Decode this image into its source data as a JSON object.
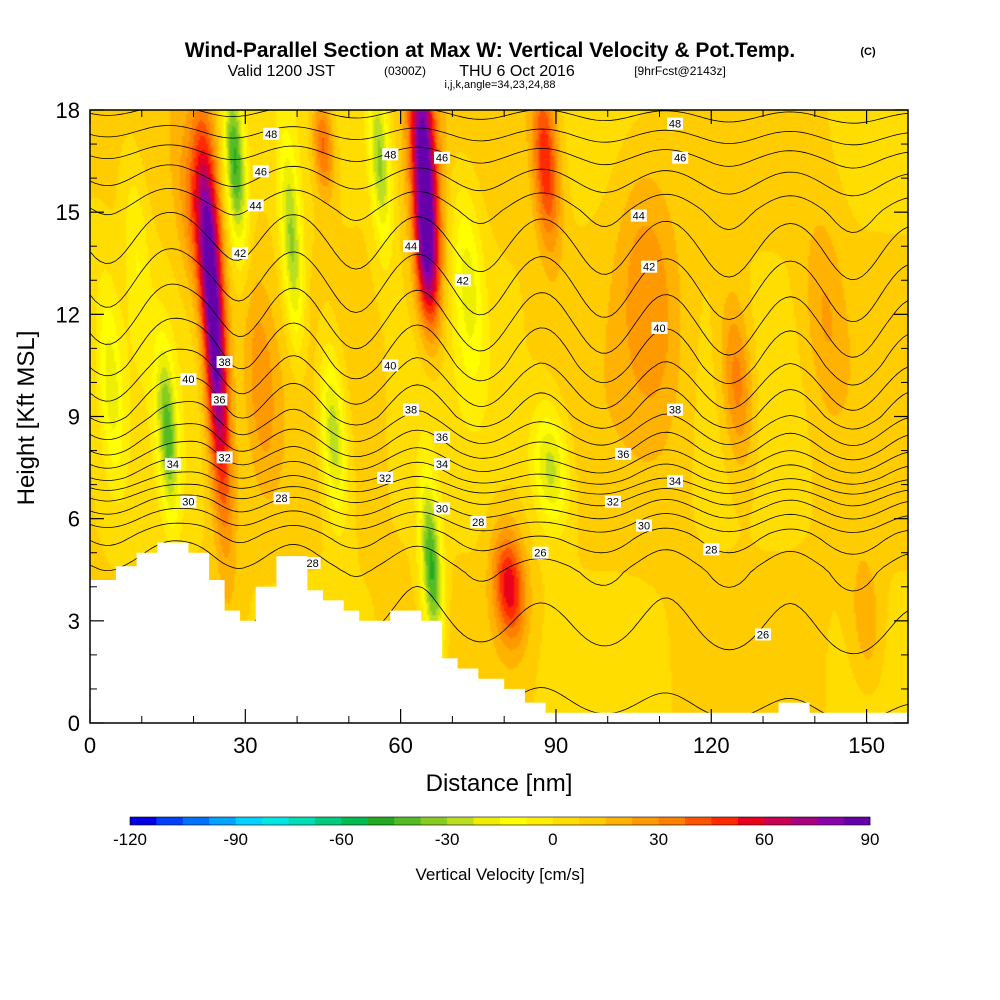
{
  "header": {
    "title": "Wind-Parallel Section at Max W: Vertical Velocity & Pot.Temp.",
    "copyright": "(C)",
    "valid_prefix": "Valid 1200 JST",
    "valid_utc": "(0300Z)",
    "valid_date": "THU 6 Oct 2016",
    "forecast": "[9hrFcst@2143z]",
    "indices": "i,j,k,angle=34,23,24,88"
  },
  "chart_data": {
    "type": "heatmap",
    "xlabel": "Distance [nm]",
    "ylabel": "Height [Kft MSL]",
    "xlim": [
      0,
      158
    ],
    "ylim": [
      0,
      18
    ],
    "x_ticks": [
      "0",
      "30",
      "60",
      "90",
      "120",
      "150"
    ],
    "x_tick_values": [
      0,
      30,
      60,
      90,
      120,
      150
    ],
    "y_ticks": [
      "0",
      "3",
      "6",
      "9",
      "12",
      "15",
      "18"
    ],
    "y_tick_values": [
      0,
      3,
      6,
      9,
      12,
      15,
      18
    ],
    "colorbar": {
      "label": "Vertical Velocity [cm/s]",
      "min": -120,
      "max": 90,
      "step": 7.5,
      "ticks": [
        "-120",
        "-90",
        "-60",
        "-30",
        "0",
        "30",
        "60",
        "90"
      ],
      "tick_values": [
        -120,
        -90,
        -60,
        -30,
        0,
        30,
        60,
        90
      ],
      "colors": [
        "#0000e6",
        "#0040ff",
        "#0072ff",
        "#00a4ff",
        "#00d2ff",
        "#00e6e6",
        "#00ddb4",
        "#00cc80",
        "#00bb50",
        "#22aa22",
        "#55bb22",
        "#88cc22",
        "#bbdd22",
        "#eeee00",
        "#ffff00",
        "#ffee00",
        "#ffdd00",
        "#ffcc00",
        "#ffb300",
        "#ff9900",
        "#ff7f00",
        "#ff5500",
        "#ff2a00",
        "#e8001e",
        "#c80050",
        "#a8007e",
        "#8a00aa",
        "#6600aa"
      ]
    },
    "terrain_profile": [
      [
        0,
        4.2
      ],
      [
        5,
        4.2
      ],
      [
        5,
        4.6
      ],
      [
        9,
        4.6
      ],
      [
        9,
        5.0
      ],
      [
        13,
        5.0
      ],
      [
        13,
        5.3
      ],
      [
        19,
        5.3
      ],
      [
        19,
        5.0
      ],
      [
        23,
        5.0
      ],
      [
        23,
        4.2
      ],
      [
        26,
        4.2
      ],
      [
        26,
        3.3
      ],
      [
        29,
        3.3
      ],
      [
        29,
        3.0
      ],
      [
        32,
        3.0
      ],
      [
        32,
        4.0
      ],
      [
        36,
        4.0
      ],
      [
        36,
        4.9
      ],
      [
        42,
        4.9
      ],
      [
        42,
        3.9
      ],
      [
        45,
        3.9
      ],
      [
        45,
        3.6
      ],
      [
        49,
        3.6
      ],
      [
        49,
        3.3
      ],
      [
        52,
        3.3
      ],
      [
        52,
        3.0
      ],
      [
        58,
        3.0
      ],
      [
        58,
        3.3
      ],
      [
        64,
        3.3
      ],
      [
        64,
        3.0
      ],
      [
        68,
        3.0
      ],
      [
        68,
        1.9
      ],
      [
        71,
        1.9
      ],
      [
        71,
        1.6
      ],
      [
        75,
        1.6
      ],
      [
        75,
        1.3
      ],
      [
        80,
        1.3
      ],
      [
        80,
        1.0
      ],
      [
        84,
        1.0
      ],
      [
        84,
        0.6
      ],
      [
        88,
        0.6
      ],
      [
        88,
        0.3
      ],
      [
        110,
        0.3
      ],
      [
        110,
        0.3
      ],
      [
        133,
        0.3
      ],
      [
        133,
        0.6
      ],
      [
        139,
        0.6
      ],
      [
        139,
        0.3
      ],
      [
        158,
        0.3
      ]
    ],
    "w_cells": [
      {
        "x": 24,
        "z": 11.5,
        "sx": 2.2,
        "sz": 5.0,
        "w": 85
      },
      {
        "x": 21,
        "z": 15.0,
        "sx": 3.5,
        "sz": 2.5,
        "w": 30
      },
      {
        "x": 64.5,
        "z": 16.5,
        "sx": 2.5,
        "sz": 3.5,
        "w": 80
      },
      {
        "x": 65,
        "z": 13.5,
        "sx": 2.2,
        "sz": 2.0,
        "w": 45
      },
      {
        "x": 88,
        "z": 16.5,
        "sx": 2.5,
        "sz": 2.5,
        "w": 45
      },
      {
        "x": 81,
        "z": 4.0,
        "sx": 3.0,
        "sz": 1.6,
        "w": 50
      },
      {
        "x": 45,
        "z": 17.0,
        "sx": 2.0,
        "sz": 1.5,
        "w": 35
      },
      {
        "x": 33,
        "z": 10.0,
        "sx": 3.0,
        "sz": 3.0,
        "w": 18
      },
      {
        "x": 108,
        "z": 12.5,
        "sx": 6.0,
        "sz": 4.0,
        "w": 20
      },
      {
        "x": 125,
        "z": 10.0,
        "sx": 3.0,
        "sz": 2.5,
        "w": 30
      },
      {
        "x": 142,
        "z": 12.0,
        "sx": 4.0,
        "sz": 3.0,
        "w": 15
      },
      {
        "x": 150,
        "z": 3.0,
        "sx": 3.0,
        "sz": 2.0,
        "w": 15
      },
      {
        "x": 15,
        "z": 8.5,
        "sx": 2.0,
        "sz": 2.5,
        "w": -45
      },
      {
        "x": 28,
        "z": 16.5,
        "sx": 2.0,
        "sz": 2.5,
        "w": -55
      },
      {
        "x": 39,
        "z": 14.0,
        "sx": 2.0,
        "sz": 3.0,
        "w": -40
      },
      {
        "x": 47,
        "z": 8.5,
        "sx": 2.5,
        "sz": 2.5,
        "w": -40
      },
      {
        "x": 56,
        "z": 16.5,
        "sx": 2.0,
        "sz": 2.5,
        "w": -40
      },
      {
        "x": 66,
        "z": 4.5,
        "sx": 2.0,
        "sz": 2.5,
        "w": -55
      },
      {
        "x": 89,
        "z": 7.5,
        "sx": 3.5,
        "sz": 1.8,
        "w": -35
      },
      {
        "x": 73,
        "z": 13.0,
        "sx": 3.0,
        "sz": 3.0,
        "w": -25
      },
      {
        "x": 4,
        "z": 10.0,
        "sx": 2.5,
        "sz": 3.0,
        "w": -25
      },
      {
        "x": 9,
        "z": 14.0,
        "sx": 2.5,
        "sz": 3.0,
        "w": -15
      }
    ],
    "theta_levels": [
      26,
      27,
      28,
      29,
      30,
      31,
      32,
      33,
      34,
      35,
      36,
      37,
      38,
      39,
      40,
      41,
      42,
      43,
      44,
      45,
      46,
      47,
      48,
      49
    ],
    "theta_labels": [
      {
        "text": "48",
        "x": 35,
        "z": 17.3
      },
      {
        "text": "46",
        "x": 33,
        "z": 16.2
      },
      {
        "text": "44",
        "x": 32,
        "z": 15.2
      },
      {
        "text": "42",
        "x": 29,
        "z": 13.8
      },
      {
        "text": "40",
        "x": 19,
        "z": 10.1
      },
      {
        "text": "38",
        "x": 26,
        "z": 10.6
      },
      {
        "text": "36",
        "x": 25,
        "z": 9.5
      },
      {
        "text": "34",
        "x": 16,
        "z": 7.6
      },
      {
        "text": "32",
        "x": 26,
        "z": 7.8
      },
      {
        "text": "30",
        "x": 19,
        "z": 6.5
      },
      {
        "text": "28",
        "x": 37,
        "z": 6.6
      },
      {
        "text": "28",
        "x": 43,
        "z": 4.7
      },
      {
        "text": "48",
        "x": 58,
        "z": 16.7
      },
      {
        "text": "46",
        "x": 68,
        "z": 16.6
      },
      {
        "text": "44",
        "x": 62,
        "z": 14.0
      },
      {
        "text": "42",
        "x": 72,
        "z": 13.0
      },
      {
        "text": "40",
        "x": 58,
        "z": 10.5
      },
      {
        "text": "38",
        "x": 62,
        "z": 9.2
      },
      {
        "text": "36",
        "x": 68,
        "z": 8.4
      },
      {
        "text": "34",
        "x": 68,
        "z": 7.6
      },
      {
        "text": "32",
        "x": 57,
        "z": 7.2
      },
      {
        "text": "30",
        "x": 68,
        "z": 6.3
      },
      {
        "text": "28",
        "x": 75,
        "z": 5.9
      },
      {
        "text": "26",
        "x": 87,
        "z": 5.0
      },
      {
        "text": "48",
        "x": 113,
        "z": 17.6
      },
      {
        "text": "46",
        "x": 114,
        "z": 16.6
      },
      {
        "text": "44",
        "x": 106,
        "z": 14.9
      },
      {
        "text": "42",
        "x": 108,
        "z": 13.4
      },
      {
        "text": "40",
        "x": 110,
        "z": 11.6
      },
      {
        "text": "38",
        "x": 113,
        "z": 9.2
      },
      {
        "text": "36",
        "x": 103,
        "z": 7.9
      },
      {
        "text": "34",
        "x": 113,
        "z": 7.1
      },
      {
        "text": "32",
        "x": 101,
        "z": 6.5
      },
      {
        "text": "30",
        "x": 107,
        "z": 5.8
      },
      {
        "text": "28",
        "x": 120,
        "z": 5.1
      },
      {
        "text": "26",
        "x": 130,
        "z": 2.6
      }
    ]
  }
}
